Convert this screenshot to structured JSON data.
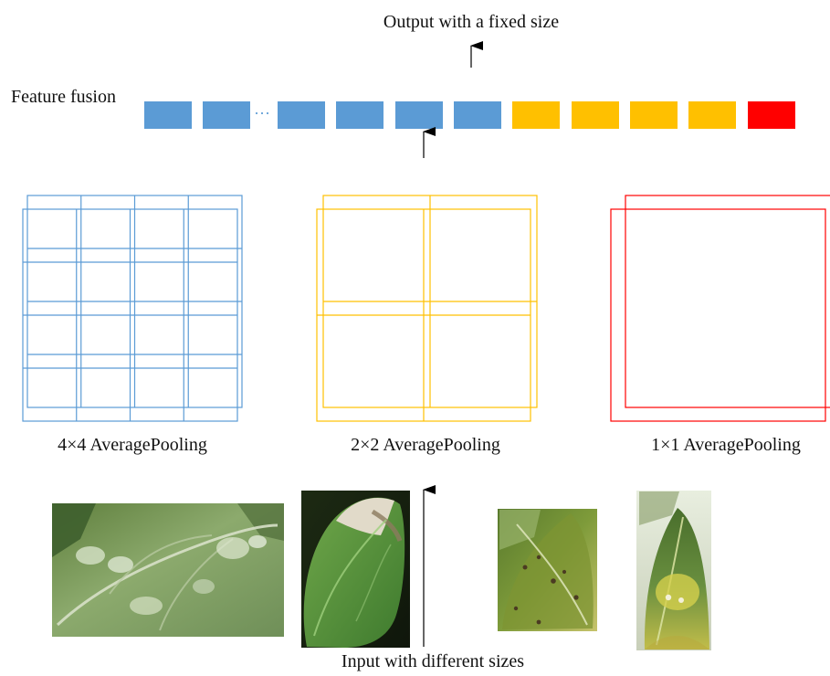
{
  "labels": {
    "output": "Output with a fixed size",
    "feature_fusion": "Feature fusion",
    "pool4": "4×4 AveragePooling",
    "pool2": "2×2 AveragePooling",
    "pool1": "1×1 AveragePooling",
    "input": "Input with different sizes"
  },
  "feature_vector": {
    "ellipsis": "···",
    "cells": [
      {
        "group": "4x4",
        "color": "#5b9bd5"
      },
      {
        "group": "4x4",
        "color": "#5b9bd5"
      },
      {
        "group": "4x4",
        "color": "#5b9bd5"
      },
      {
        "group": "4x4",
        "color": "#5b9bd5"
      },
      {
        "group": "4x4",
        "color": "#5b9bd5"
      },
      {
        "group": "4x4",
        "color": "#5b9bd5"
      },
      {
        "group": "2x2",
        "color": "#ffc000"
      },
      {
        "group": "2x2",
        "color": "#ffc000"
      },
      {
        "group": "2x2",
        "color": "#ffc000"
      },
      {
        "group": "2x2",
        "color": "#ffc000"
      },
      {
        "group": "1x1",
        "color": "#ff0000"
      }
    ]
  },
  "grids": [
    {
      "name": "4x4",
      "divisions": 4,
      "color": "#5b9bd5"
    },
    {
      "name": "2x2",
      "divisions": 2,
      "color": "#ffc000"
    },
    {
      "name": "1x1",
      "divisions": 1,
      "color": "#ff0000"
    }
  ],
  "inputs": [
    {
      "name": "leaf-image-1",
      "subject": "green leaf with white powdery spots"
    },
    {
      "name": "leaf-image-2",
      "subject": "green leaf with dry brown edge"
    },
    {
      "name": "leaf-image-3",
      "subject": "yellow-green leaf with dark spots"
    },
    {
      "name": "leaf-image-4",
      "subject": "green leaf with yellow lesions"
    }
  ],
  "colors": {
    "blue": "#5b9bd5",
    "yellow": "#ffc000",
    "red": "#ff0000",
    "arrow": "#000000"
  }
}
